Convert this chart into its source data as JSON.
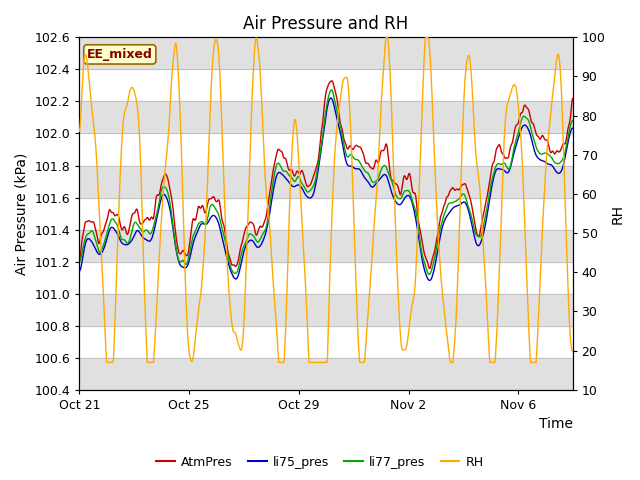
{
  "title": "Air Pressure and RH",
  "ylabel_left": "Air Pressure (kPa)",
  "ylabel_right": "RH",
  "xlabel": "Time",
  "ylim_left": [
    100.4,
    102.6
  ],
  "ylim_right": [
    10,
    100
  ],
  "yticks_left": [
    100.4,
    100.6,
    100.8,
    101.0,
    101.2,
    101.4,
    101.6,
    101.8,
    102.0,
    102.2,
    102.4,
    102.6
  ],
  "yticks_right": [
    10,
    20,
    30,
    40,
    50,
    60,
    70,
    80,
    90,
    100
  ],
  "xtick_labels": [
    "Oct 21",
    "Oct 25",
    "Oct 29",
    "Nov 2",
    "Nov 6"
  ],
  "legend_labels": [
    "AtmPres",
    "li75_pres",
    "li77_pres",
    "RH"
  ],
  "annotation_text": "EE_mixed",
  "annotation_bg": "#ffffcc",
  "annotation_border": "#996600",
  "annotation_text_color": "#880000",
  "background_color": "#ffffff",
  "band_color": "#e0e0e0",
  "grid_color": "#bbbbbb",
  "title_fontsize": 12,
  "axis_fontsize": 10,
  "tick_fontsize": 9,
  "rh_color": "#ffaa00",
  "atm_color": "#cc0000",
  "li75_color": "#0000cc",
  "li77_color": "#00aa00"
}
